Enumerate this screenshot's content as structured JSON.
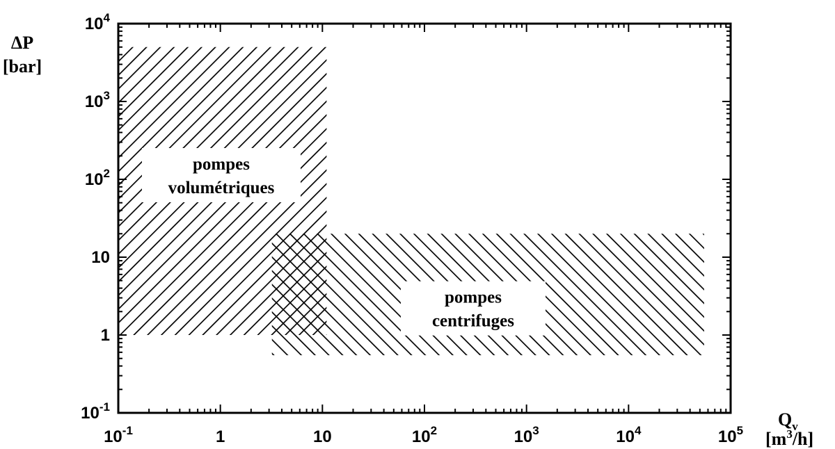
{
  "chart_data": {
    "type": "area",
    "title": "",
    "xscale": "log",
    "yscale": "log",
    "xlim": [
      0.1,
      100000
    ],
    "ylim": [
      0.1,
      10000
    ],
    "x_ticks": [
      {
        "value": 0.1,
        "base": "10",
        "exp": "-1"
      },
      {
        "value": 1,
        "base": "1",
        "exp": ""
      },
      {
        "value": 10,
        "base": "10",
        "exp": ""
      },
      {
        "value": 100,
        "base": "10",
        "exp": "2"
      },
      {
        "value": 1000,
        "base": "10",
        "exp": "3"
      },
      {
        "value": 10000,
        "base": "10",
        "exp": "4"
      },
      {
        "value": 100000,
        "base": "10",
        "exp": "5"
      }
    ],
    "y_ticks": [
      {
        "value": 0.1,
        "base": "10",
        "exp": "-1"
      },
      {
        "value": 1,
        "base": "1",
        "exp": ""
      },
      {
        "value": 10,
        "base": "10",
        "exp": ""
      },
      {
        "value": 100,
        "base": "10",
        "exp": "2"
      },
      {
        "value": 1000,
        "base": "10",
        "exp": "3"
      },
      {
        "value": 10000,
        "base": "10",
        "exp": "4"
      }
    ],
    "xlabel": {
      "symbol": "Q",
      "sub": "v",
      "unit_pre": "[m",
      "unit_sup": "3",
      "unit_post": "/h]"
    },
    "ylabel": {
      "symbol": "ΔP",
      "unit": "[bar]"
    },
    "grid": false,
    "regions": [
      {
        "name": "pompes volumétriques",
        "label_lines": [
          "pompes",
          "volumétriques"
        ],
        "x_range": [
          0.1,
          11
        ],
        "y_range": [
          1,
          5000
        ],
        "hatch": "forward"
      },
      {
        "name": "pompes centrifuges",
        "label_lines": [
          "pompes",
          "centrifuges"
        ],
        "x_range": [
          3.2,
          55000
        ],
        "y_range": [
          0.55,
          20
        ],
        "hatch": "backward"
      }
    ]
  }
}
